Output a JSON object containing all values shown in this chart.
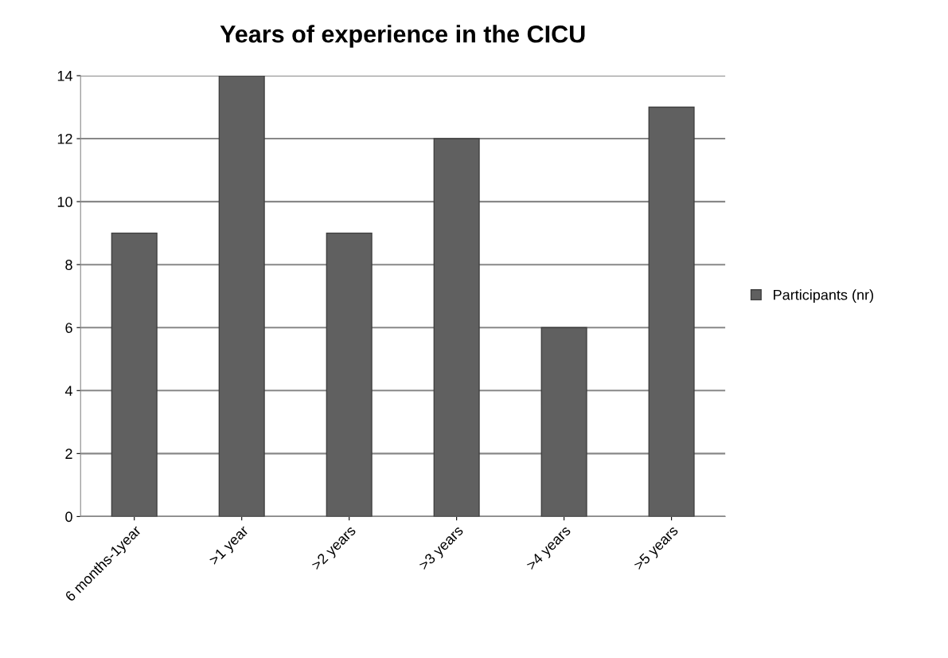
{
  "chart_data": {
    "type": "bar",
    "title": "Years of experience in the CICU",
    "categories": [
      "6 months-1year",
      ">1 year",
      ">2 years",
      ">3 years",
      ">4 years",
      ">5 years"
    ],
    "series": [
      {
        "name": "Participants (nr)",
        "color": "#606060",
        "values": [
          9,
          14,
          9,
          12,
          6,
          13
        ]
      }
    ],
    "ylim": [
      0,
      14
    ],
    "yticks": [
      0,
      2,
      4,
      6,
      8,
      10,
      12,
      14
    ],
    "grid": "y",
    "legend": "right"
  }
}
